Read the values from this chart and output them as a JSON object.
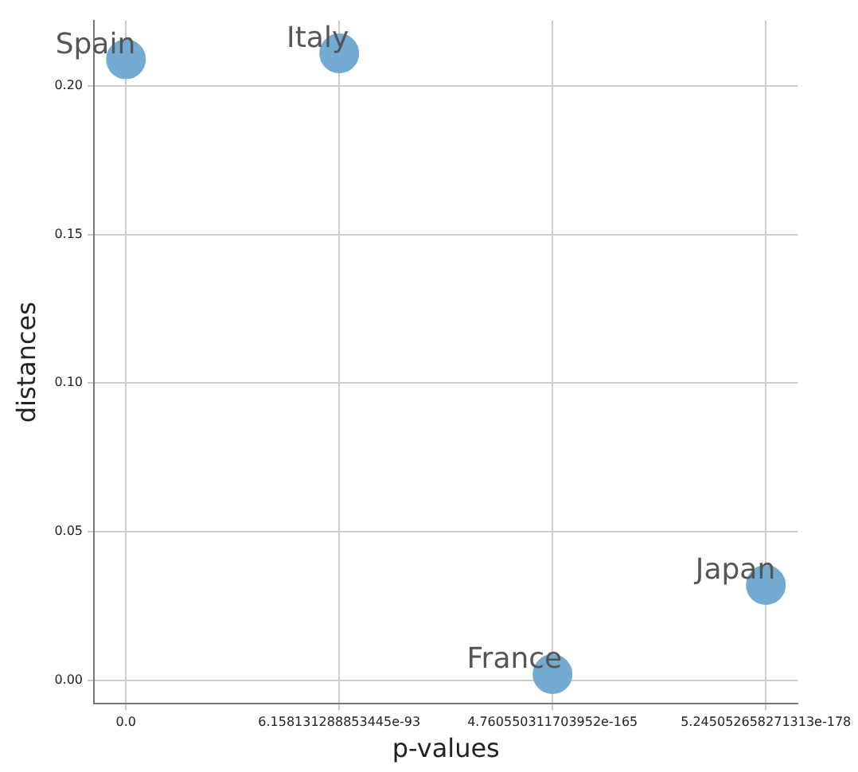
{
  "chart_data": {
    "type": "scatter",
    "xlabel": "p-values",
    "ylabel": "distances",
    "categories": [
      "0.0",
      "6.158131288853445e-93",
      "4.760550311703952e-165",
      "5.245052658271313e-178"
    ],
    "values": [
      0.209,
      0.211,
      0.002,
      0.032
    ],
    "color": "#72aad2",
    "ylim": [
      -0.008,
      0.222
    ],
    "yticks": [
      {
        "value": 0,
        "label": "0.00"
      },
      {
        "value": 0.05,
        "label": "0.05"
      },
      {
        "value": 0.1,
        "label": "0.10"
      },
      {
        "value": 0.15,
        "label": "0.15"
      },
      {
        "value": 0.2,
        "label": "0.20"
      }
    ],
    "grid": true,
    "marker": "circle",
    "legend": false,
    "annotations": [
      {
        "text": "Spain",
        "x": "0.0",
        "y": 0.209
      },
      {
        "text": "Italy",
        "x": "6.158131288853445e-93",
        "y": 0.211
      },
      {
        "text": "France",
        "x": "4.760550311703952e-165",
        "y": 0.002
      },
      {
        "text": "Japan",
        "x": "5.245052658271313e-178",
        "y": 0.032
      }
    ]
  }
}
